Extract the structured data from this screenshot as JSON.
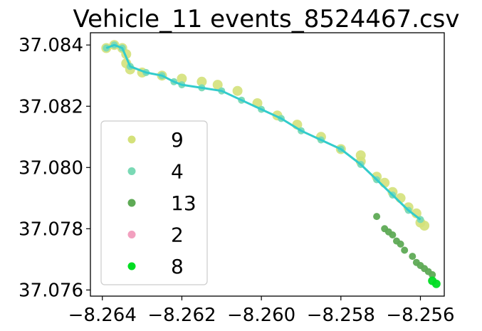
{
  "chart_data": {
    "type": "scatter",
    "title": "Vehicle_11 events_8524467.csv",
    "xlabel": "",
    "ylabel": "",
    "xlim": [
      -8.2643,
      -8.2554
    ],
    "ylim": [
      37.0758,
      37.0844
    ],
    "x_ticks": [
      -8.264,
      -8.262,
      -8.26,
      -8.258,
      -8.256
    ],
    "x_tick_labels": [
      "−8.264",
      "−8.262",
      "−8.260",
      "−8.258",
      "−8.256"
    ],
    "y_ticks": [
      37.076,
      37.078,
      37.08,
      37.082,
      37.084
    ],
    "y_tick_labels": [
      "37.076",
      "37.078",
      "37.080",
      "37.082",
      "37.084"
    ],
    "grid": false,
    "legend_position": "center-left",
    "series": [
      {
        "name": "9",
        "color": "#d4e17a",
        "points": [
          [
            -8.2639,
            37.0839
          ],
          [
            -8.2637,
            37.084
          ],
          [
            -8.2635,
            37.0839
          ],
          [
            -8.2634,
            37.0837
          ],
          [
            -8.2634,
            37.0834
          ],
          [
            -8.2633,
            37.0832
          ],
          [
            -8.263,
            37.0831
          ],
          [
            -8.2625,
            37.083
          ],
          [
            -8.262,
            37.0829
          ],
          [
            -8.2615,
            37.0828
          ],
          [
            -8.2611,
            37.0827
          ],
          [
            -8.2606,
            37.0825
          ],
          [
            -8.2601,
            37.0821
          ],
          [
            -8.2596,
            37.0817
          ],
          [
            -8.2591,
            37.0814
          ],
          [
            -8.2585,
            37.081
          ],
          [
            -8.258,
            37.0806
          ],
          [
            -8.2575,
            37.0802
          ],
          [
            -8.2571,
            37.0797
          ],
          [
            -8.2567,
            37.0792
          ],
          [
            -8.2563,
            37.0787
          ],
          [
            -8.256,
            37.0782
          ],
          [
            -8.2575,
            37.0804
          ],
          [
            -8.2569,
            37.0795
          ],
          [
            -8.2565,
            37.079
          ],
          [
            -8.2561,
            37.0785
          ],
          [
            -8.2559,
            37.0781
          ]
        ]
      },
      {
        "name": "4",
        "color": "#7ad9b5",
        "points": [
          [
            -8.2639,
            37.0839
          ],
          [
            -8.2637,
            37.084
          ],
          [
            -8.2635,
            37.0839
          ],
          [
            -8.2633,
            37.0833
          ],
          [
            -8.2629,
            37.0831
          ],
          [
            -8.2625,
            37.083
          ],
          [
            -8.2622,
            37.0828
          ],
          [
            -8.262,
            37.0827
          ],
          [
            -8.2615,
            37.0826
          ],
          [
            -8.261,
            37.0825
          ],
          [
            -8.2605,
            37.0822
          ],
          [
            -8.26,
            37.0819
          ],
          [
            -8.2595,
            37.0816
          ],
          [
            -8.259,
            37.0812
          ],
          [
            -8.2585,
            37.0809
          ],
          [
            -8.258,
            37.0806
          ],
          [
            -8.2575,
            37.0801
          ],
          [
            -8.2571,
            37.0796
          ],
          [
            -8.2567,
            37.0791
          ],
          [
            -8.2563,
            37.0786
          ],
          [
            -8.256,
            37.0783
          ]
        ]
      },
      {
        "name": "13",
        "color": "#5eaa55",
        "points": [
          [
            -8.2571,
            37.0784
          ],
          [
            -8.2569,
            37.078
          ],
          [
            -8.2568,
            37.0779
          ],
          [
            -8.2567,
            37.0778
          ],
          [
            -8.2566,
            37.0776
          ],
          [
            -8.2565,
            37.0775
          ],
          [
            -8.2564,
            37.0773
          ],
          [
            -8.2562,
            37.0771
          ],
          [
            -8.2561,
            37.0769
          ],
          [
            -8.256,
            37.0768
          ],
          [
            -8.2559,
            37.0767
          ],
          [
            -8.2558,
            37.0766
          ],
          [
            -8.2557,
            37.0765
          ]
        ]
      },
      {
        "name": "2",
        "color": "#f2a0bf",
        "points": []
      },
      {
        "name": "8",
        "color": "#00dd22",
        "points": [
          [
            -8.2557,
            37.0763
          ],
          [
            -8.2556,
            37.0762
          ]
        ]
      }
    ],
    "track_line_color": "#33cccc"
  }
}
